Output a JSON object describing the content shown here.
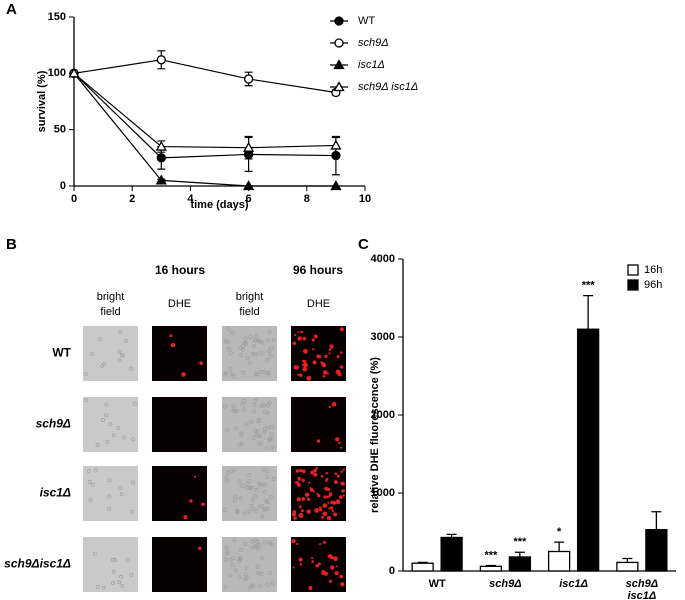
{
  "panels": {
    "a": "A",
    "b": "B",
    "c": "C"
  },
  "images": {
    "column_headers": [
      "16 hours",
      "96 hours"
    ],
    "sub_headers": [
      "bright field",
      "DHE",
      "bright field",
      "DHE"
    ],
    "row_labels": [
      "WT",
      "sch9Δ",
      "isc1Δ",
      "sch9Δisc1Δ"
    ]
  },
  "chart_data": [
    {
      "type": "line",
      "x_label": "time (days)",
      "y_label": "survival (%)",
      "x": [
        0,
        3,
        6,
        9
      ],
      "xlim": [
        0,
        10
      ],
      "xticks": [
        0,
        2,
        4,
        6,
        8,
        10
      ],
      "ylim": [
        0,
        150
      ],
      "yticks": [
        0,
        50,
        100,
        150
      ],
      "series": [
        {
          "name": "WT",
          "color": "#000000",
          "marker": "circle",
          "filled": true,
          "italic": false,
          "values": [
            100,
            25,
            28,
            27
          ],
          "errors": [
            0,
            10,
            15,
            17
          ]
        },
        {
          "name": "sch9Δ",
          "color": "#000000",
          "marker": "circle",
          "filled": false,
          "italic": true,
          "values": [
            100,
            112,
            95,
            83
          ],
          "errors": [
            0,
            8,
            6,
            2
          ]
        },
        {
          "name": "isc1Δ",
          "color": "#000000",
          "marker": "triangle",
          "filled": true,
          "italic": true,
          "values": [
            100,
            5,
            0,
            0
          ],
          "errors": [
            0,
            1,
            0,
            0
          ]
        },
        {
          "name": "sch9Δ isc1Δ",
          "color": "#000000",
          "marker": "triangle",
          "filled": false,
          "italic": true,
          "values": [
            100,
            35,
            34,
            36
          ],
          "errors": [
            0,
            5,
            10,
            7
          ]
        }
      ]
    },
    {
      "type": "bar",
      "y_label": "relative DHE fluorescence (%)",
      "categories": [
        "WT",
        "sch9Δ",
        "isc1Δ",
        "sch9Δ isc1Δ"
      ],
      "ylim": [
        0,
        4000
      ],
      "yticks": [
        0,
        1000,
        2000,
        3000,
        4000
      ],
      "series": [
        {
          "name": "16h",
          "color": "#ffffff",
          "values": [
            100,
            60,
            250,
            110
          ],
          "errors": [
            10,
            10,
            120,
            50
          ],
          "significance": [
            null,
            "***",
            "*",
            null
          ]
        },
        {
          "name": "96h",
          "color": "#000000",
          "values": [
            430,
            180,
            3100,
            530
          ],
          "errors": [
            40,
            60,
            430,
            230
          ],
          "significance": [
            null,
            "***",
            "***",
            null
          ]
        }
      ]
    }
  ]
}
